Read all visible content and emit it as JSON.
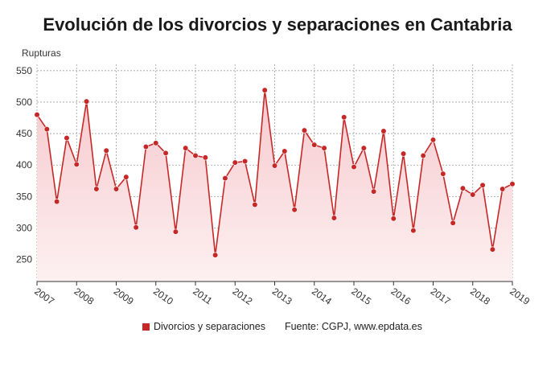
{
  "title": "Evolución de los divorcios y separaciones en Cantabria",
  "legend": {
    "series_label": "Divorcios y separaciones",
    "source": "Fuente: CGPJ, www.epdata.es"
  },
  "colors": {
    "line": "#c62828",
    "point": "#c62828",
    "area_top": "#f6c9cd",
    "area_bottom": "#fdf0f1",
    "grid": "#9e9e9e"
  },
  "chart_data": {
    "type": "area",
    "title": "Evolución de los divorcios y separaciones en Cantabria",
    "ylabel": "Rupturas",
    "xlabel": "",
    "ylim": [
      215,
      560
    ],
    "yticks": [
      250,
      300,
      350,
      400,
      450,
      500,
      550
    ],
    "x_range": [
      2007,
      2019
    ],
    "xticks": [
      "2007",
      "2008",
      "2009",
      "2010",
      "2011",
      "2012",
      "2013",
      "2014",
      "2015",
      "2016",
      "2017",
      "2018",
      "2019"
    ],
    "grid": true,
    "legend_position": "bottom",
    "series": [
      {
        "name": "Divorcios y separaciones",
        "values": [
          480,
          457,
          342,
          443,
          401,
          501,
          362,
          423,
          362,
          381,
          301,
          429,
          435,
          419,
          294,
          427,
          415,
          412,
          257,
          379,
          404,
          406,
          337,
          519,
          399,
          422,
          329,
          455,
          432,
          427,
          316,
          476,
          397,
          427,
          358,
          454,
          315,
          418,
          296,
          415,
          440,
          386,
          308,
          363,
          353,
          368,
          266,
          362,
          370
        ]
      }
    ]
  }
}
